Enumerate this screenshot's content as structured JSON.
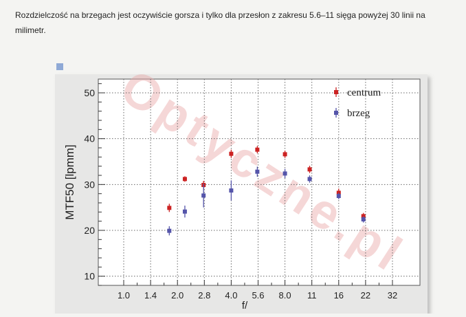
{
  "article": {
    "paragraph": "Rozdzielczość na brzegach jest oczywiście gorsza i tylko dla przesłon z zakresu 5.6–11 sięga powyżej 30 linii na milimetr."
  },
  "watermark": "Optyczne.pl",
  "chart_data": {
    "type": "scatter",
    "title": "",
    "xlabel": "f/",
    "ylabel": "MTF50 [lpmm]",
    "x_ticks": [
      "1.0",
      "1.4",
      "2.0",
      "2.8",
      "4.0",
      "5.6",
      "8.0",
      "11",
      "16",
      "22",
      "32"
    ],
    "x_scale": "log2 (f-stop)",
    "ylim": [
      8,
      53
    ],
    "y_ticks": [
      10,
      20,
      30,
      40,
      50
    ],
    "grid": true,
    "legend_position": "top-right",
    "series": [
      {
        "name": "centrum",
        "color": "#cc2222",
        "points": [
          {
            "x": 1.8,
            "y": 24.9,
            "err": 0.9
          },
          {
            "x": 2.2,
            "y": 31.2,
            "err": 0.6
          },
          {
            "x": 2.8,
            "y": 29.9,
            "err": 0.9
          },
          {
            "x": 4.0,
            "y": 36.7,
            "err": 0.9
          },
          {
            "x": 5.6,
            "y": 37.6,
            "err": 0.8
          },
          {
            "x": 8.0,
            "y": 36.6,
            "err": 0.8
          },
          {
            "x": 11,
            "y": 33.3,
            "err": 0.8
          },
          {
            "x": 16,
            "y": 28.2,
            "err": 0.9
          },
          {
            "x": 22,
            "y": 23.1,
            "err": 0.7
          }
        ]
      },
      {
        "name": "brzeg",
        "color": "#5555aa",
        "points": [
          {
            "x": 1.8,
            "y": 19.9,
            "err": 1.0
          },
          {
            "x": 2.2,
            "y": 24.1,
            "err": 1.3
          },
          {
            "x": 2.8,
            "y": 27.6,
            "err": 2.6
          },
          {
            "x": 4.0,
            "y": 28.7,
            "err": 2.2
          },
          {
            "x": 5.6,
            "y": 32.8,
            "err": 1.1
          },
          {
            "x": 8.0,
            "y": 32.4,
            "err": 1.0
          },
          {
            "x": 11,
            "y": 31.2,
            "err": 0.8
          },
          {
            "x": 16,
            "y": 27.5,
            "err": 0.7
          },
          {
            "x": 22,
            "y": 22.4,
            "err": 0.7
          }
        ]
      }
    ]
  }
}
